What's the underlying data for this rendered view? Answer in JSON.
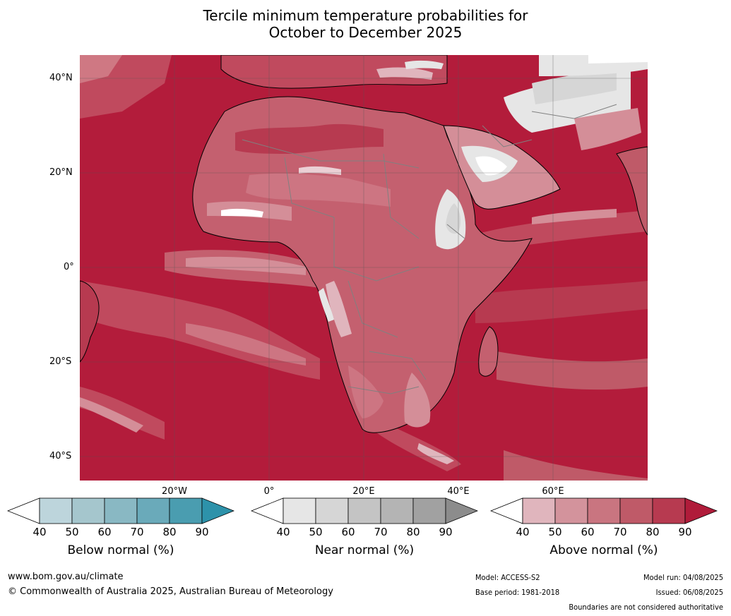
{
  "title_line1": "Tercile minimum temperature probabilities for",
  "title_line2": "October to December 2025",
  "lat_labels": [
    "40°N",
    "20°N",
    "0°",
    "20°S",
    "40°S"
  ],
  "lon_labels": [
    "20°W",
    "0°",
    "20°E",
    "40°E",
    "60°E"
  ],
  "colorbars": [
    {
      "title": "Below normal (%)",
      "ticks": [
        "40",
        "50",
        "60",
        "70",
        "80",
        "90"
      ],
      "colors": [
        "#ffffff",
        "#bdd5dc",
        "#a5c6cd",
        "#89b8c3",
        "#6aaaba",
        "#4a9db0",
        "#2d92aa"
      ]
    },
    {
      "title": "Near normal (%)",
      "ticks": [
        "40",
        "50",
        "60",
        "70",
        "80",
        "90"
      ],
      "colors": [
        "#ffffff",
        "#e6e6e6",
        "#d6d6d6",
        "#c4c4c4",
        "#b4b4b4",
        "#a1a1a1",
        "#8c8c8c"
      ]
    },
    {
      "title": "Above normal (%)",
      "ticks": [
        "40",
        "50",
        "60",
        "70",
        "80",
        "90"
      ],
      "colors": [
        "#ffffff",
        "#e0b5bd",
        "#d3939c",
        "#c97580",
        "#bf5a68",
        "#b73a50",
        "#b01c3a"
      ]
    }
  ],
  "footer": {
    "website": "www.bom.gov.au/climate",
    "copyright": "© Commonwealth of Australia 2025, Australian Bureau of Meteorology",
    "model": "Model: ACCESS-S2",
    "base_period": "Base period: 1981-2018",
    "model_run": "Model run: 04/08/2025",
    "issued": "Issued: 06/08/2025",
    "disclaimer": "Boundaries are not considered authoritative"
  }
}
